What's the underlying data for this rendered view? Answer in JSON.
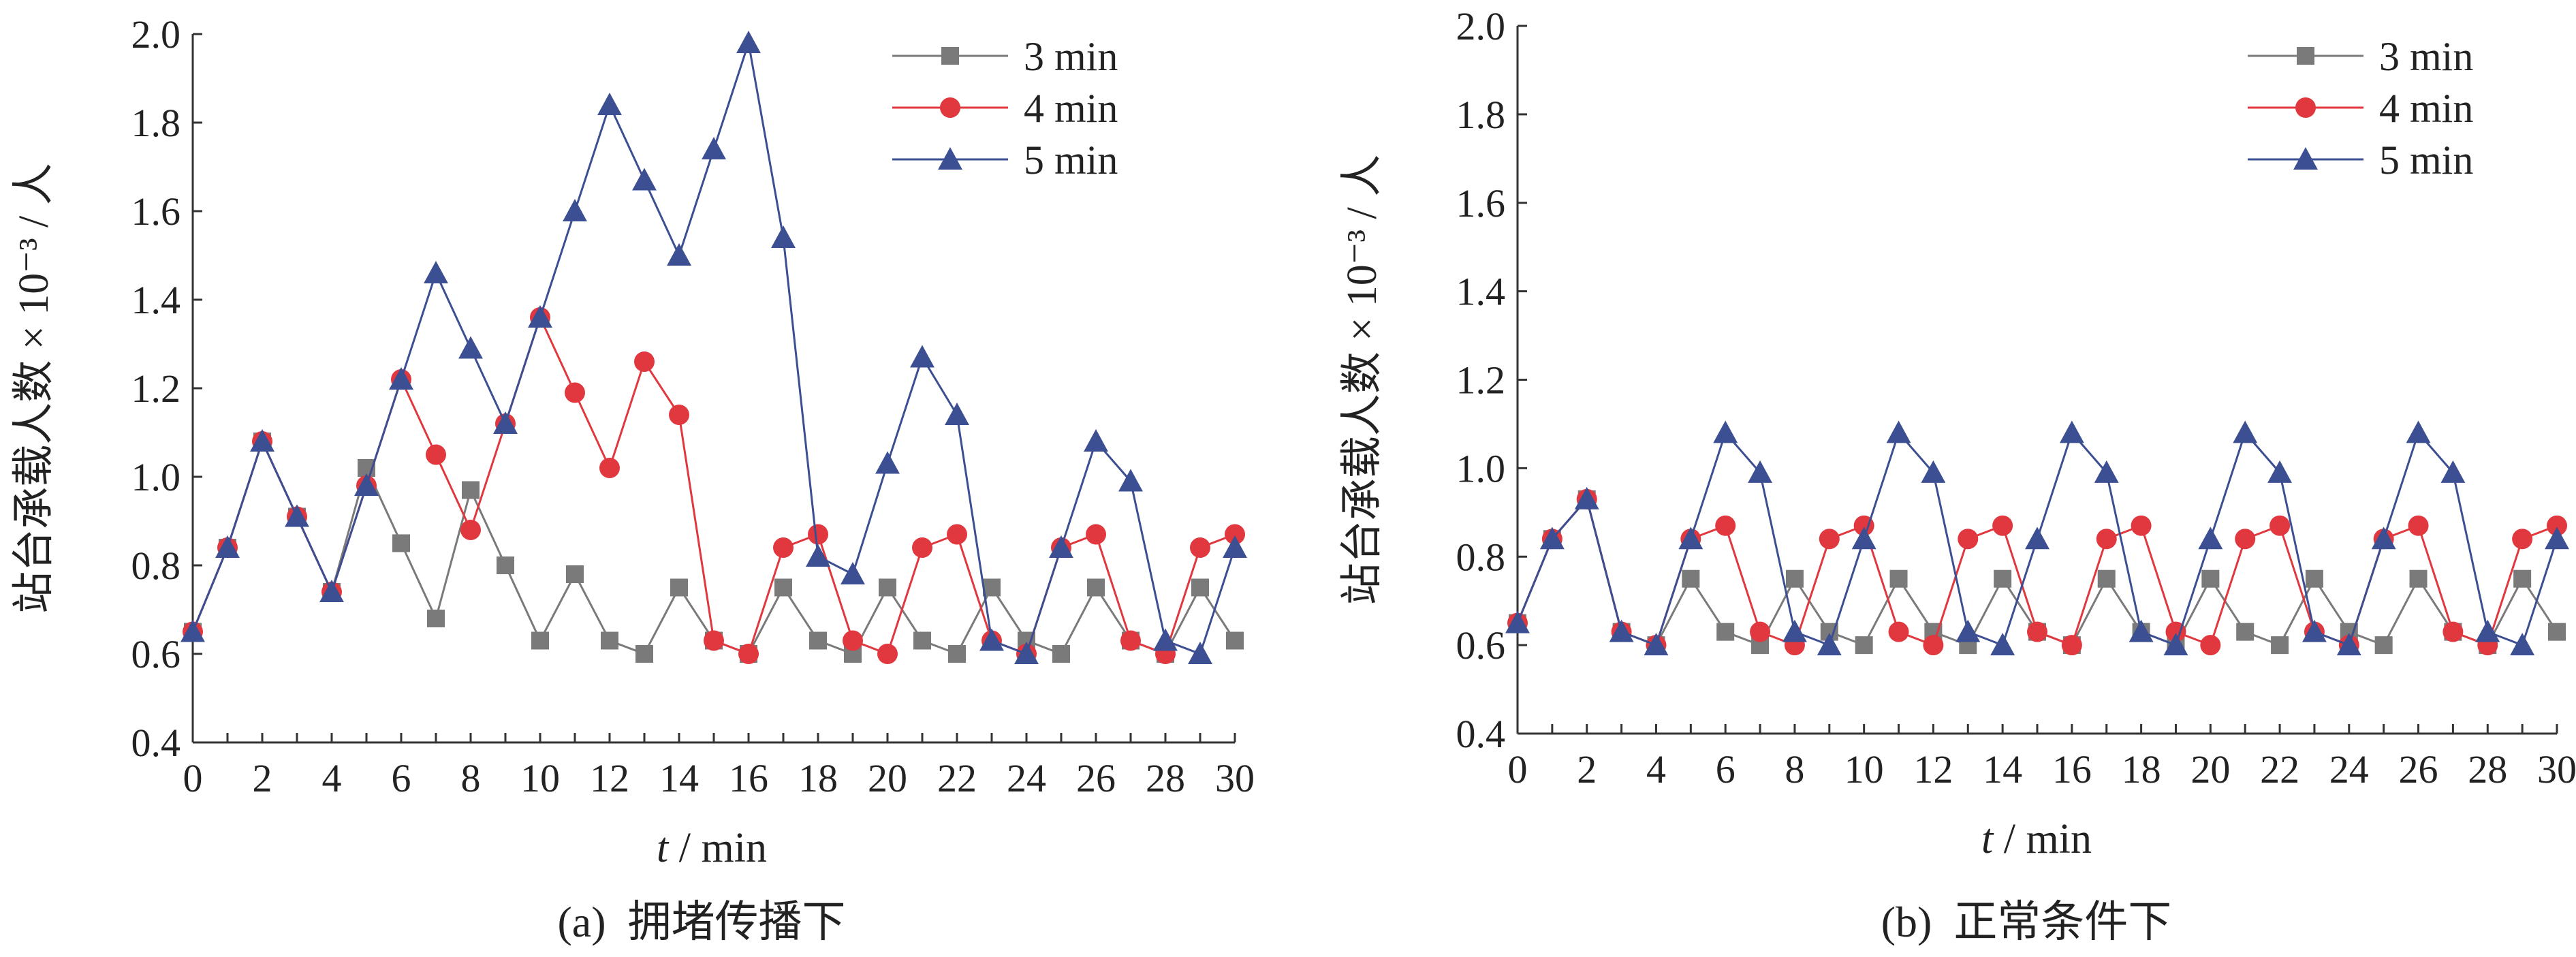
{
  "figure": {
    "caption_a": "(a)  拥堵传播下",
    "caption_b": "(b)  正常条件下"
  },
  "colors": {
    "3 min": "#7a7a7a",
    "4 min": "#e0383e",
    "5 min": "#3b4f92"
  },
  "chart_data": [
    {
      "type": "line",
      "title": "",
      "xlabel_italic": "t",
      "xlabel_rest": " / min",
      "ylabel": "站台承载人数 × 10⁻³ / 人",
      "xlim": [
        0,
        30
      ],
      "ylim": [
        0.4,
        2.0
      ],
      "xticks": [
        0,
        2,
        4,
        6,
        8,
        10,
        12,
        14,
        16,
        18,
        20,
        22,
        24,
        26,
        28,
        30
      ],
      "yticks": [
        "0.4",
        "0.6",
        "0.8",
        "1.0",
        "1.2",
        "1.4",
        "1.6",
        "1.8",
        "2.0"
      ],
      "grid": false,
      "legend_position": "top-right",
      "x": [
        0,
        1,
        2,
        3,
        4,
        5,
        6,
        7,
        8,
        9,
        10,
        11,
        12,
        13,
        14,
        15,
        16,
        17,
        18,
        19,
        20,
        21,
        22,
        23,
        24,
        25,
        26,
        27,
        28,
        29,
        30
      ],
      "series": [
        {
          "name": "3 min",
          "marker": "square",
          "values": [
            0.65,
            0.84,
            1.08,
            0.91,
            0.74,
            1.02,
            0.85,
            0.68,
            0.97,
            0.8,
            0.63,
            0.78,
            0.63,
            0.6,
            0.75,
            0.63,
            0.6,
            0.75,
            0.63,
            0.6,
            0.75,
            0.63,
            0.6,
            0.75,
            0.63,
            0.6,
            0.75,
            0.63,
            0.6,
            0.75,
            0.63
          ]
        },
        {
          "name": "4 min",
          "marker": "circle",
          "values": [
            0.65,
            0.84,
            1.08,
            0.91,
            0.74,
            0.98,
            1.22,
            1.05,
            0.88,
            1.12,
            1.36,
            1.19,
            1.02,
            1.26,
            1.14,
            0.63,
            0.6,
            0.84,
            0.87,
            0.63,
            0.6,
            0.84,
            0.87,
            0.63,
            0.6,
            0.84,
            0.87,
            0.63,
            0.6,
            0.84,
            0.87
          ]
        },
        {
          "name": "5 min",
          "marker": "triangle",
          "values": [
            0.65,
            0.84,
            1.08,
            0.91,
            0.74,
            0.98,
            1.22,
            1.46,
            1.29,
            1.12,
            1.36,
            1.6,
            1.84,
            1.67,
            1.5,
            1.74,
            1.98,
            1.54,
            0.82,
            0.78,
            1.03,
            1.27,
            1.14,
            0.63,
            0.6,
            0.84,
            1.08,
            0.99,
            0.63,
            0.6,
            0.84
          ]
        }
      ]
    },
    {
      "type": "line",
      "title": "",
      "xlabel_italic": "t",
      "xlabel_rest": " / min",
      "ylabel": "站台承载人数 × 10⁻³ / 人",
      "xlim": [
        0,
        30
      ],
      "ylim": [
        0.4,
        2.0
      ],
      "xticks": [
        0,
        2,
        4,
        6,
        8,
        10,
        12,
        14,
        16,
        18,
        20,
        22,
        24,
        26,
        28,
        30
      ],
      "yticks": [
        "0.4",
        "0.6",
        "0.8",
        "1.0",
        "1.2",
        "1.4",
        "1.6",
        "1.8",
        "2.0"
      ],
      "grid": false,
      "legend_position": "top-right",
      "x": [
        0,
        1,
        2,
        3,
        4,
        5,
        6,
        7,
        8,
        9,
        10,
        11,
        12,
        13,
        14,
        15,
        16,
        17,
        18,
        19,
        20,
        21,
        22,
        23,
        24,
        25,
        26,
        27,
        28,
        29,
        30
      ],
      "series": [
        {
          "name": "3 min",
          "marker": "square",
          "values": [
            0.65,
            0.84,
            0.93,
            0.63,
            0.6,
            0.75,
            0.63,
            0.6,
            0.75,
            0.63,
            0.6,
            0.75,
            0.63,
            0.6,
            0.75,
            0.63,
            0.6,
            0.75,
            0.63,
            0.6,
            0.75,
            0.63,
            0.6,
            0.75,
            0.63,
            0.6,
            0.75,
            0.63,
            0.6,
            0.75,
            0.63
          ]
        },
        {
          "name": "4 min",
          "marker": "circle",
          "values": [
            0.65,
            0.84,
            0.93,
            0.63,
            0.6,
            0.84,
            0.87,
            0.63,
            0.6,
            0.84,
            0.87,
            0.63,
            0.6,
            0.84,
            0.87,
            0.63,
            0.6,
            0.84,
            0.87,
            0.63,
            0.6,
            0.84,
            0.87,
            0.63,
            0.6,
            0.84,
            0.87,
            0.63,
            0.6,
            0.84,
            0.87
          ]
        },
        {
          "name": "5 min",
          "marker": "triangle",
          "values": [
            0.65,
            0.84,
            0.93,
            0.63,
            0.6,
            0.84,
            1.08,
            0.99,
            0.63,
            0.6,
            0.84,
            1.08,
            0.99,
            0.63,
            0.6,
            0.84,
            1.08,
            0.99,
            0.63,
            0.6,
            0.84,
            1.08,
            0.99,
            0.63,
            0.6,
            0.84,
            1.08,
            0.99,
            0.63,
            0.6,
            0.84
          ]
        }
      ]
    }
  ]
}
